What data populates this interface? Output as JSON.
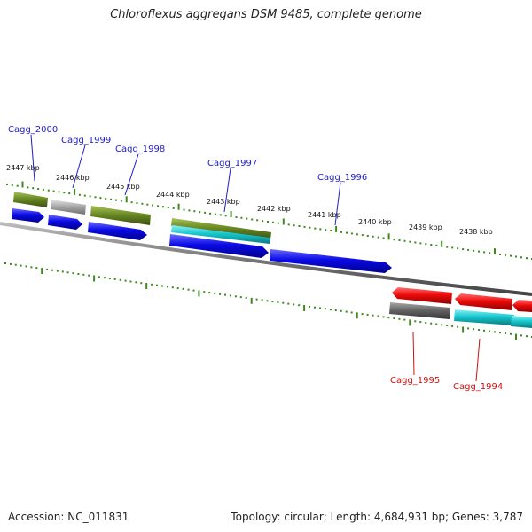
{
  "title": "Chloroflexus aggregans DSM 9485, complete genome",
  "footer": {
    "accession": "Accession: NC_011831",
    "summary": "Topology: circular; Length: 4,684,931 bp; Genes: 3,787"
  },
  "colors": {
    "blue_gene": "#0a0ae6",
    "red_gene": "#ee0b0b",
    "olive_rna": "#6a8a24",
    "cyan_gene": "#16c8cf",
    "gray_gene": "#aaaaaa",
    "dark_gray_gene": "#666666",
    "ruler": "#3c8a1e",
    "label_blue": "#1c1ccc",
    "label_red": "#d01010"
  },
  "ruler_labels": [
    "2447 kbp",
    "2446 kbp",
    "2445 kbp",
    "2444 kbp",
    "2443 kbp",
    "2442 kbp",
    "2441 kbp",
    "2440 kbp",
    "2439 kbp",
    "2438 kbp"
  ],
  "gene_labels": [
    {
      "text": "Cagg_2000",
      "strand": "forward"
    },
    {
      "text": "Cagg_1999",
      "strand": "forward"
    },
    {
      "text": "Cagg_1998",
      "strand": "forward"
    },
    {
      "text": "Cagg_1997",
      "strand": "forward"
    },
    {
      "text": "Cagg_1996",
      "strand": "forward"
    },
    {
      "text": "Cagg_1995",
      "strand": "reverse"
    },
    {
      "text": "Cagg_1994",
      "strand": "reverse"
    }
  ]
}
